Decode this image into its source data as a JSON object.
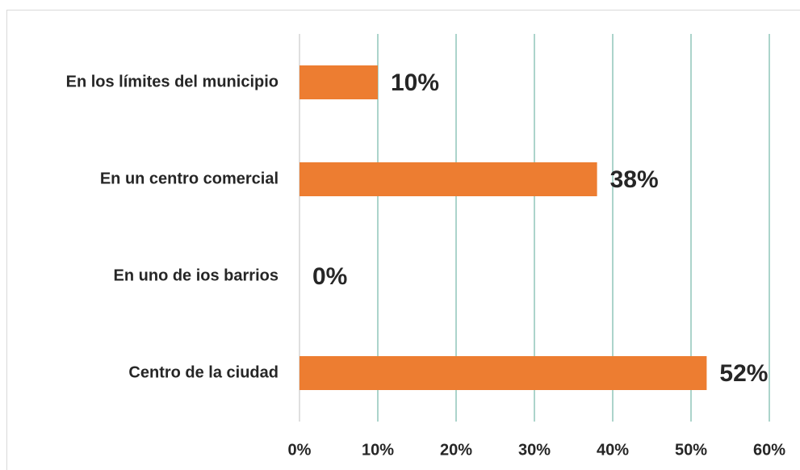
{
  "chart_data": {
    "type": "bar",
    "orientation": "horizontal",
    "categories": [
      "En los límites del municipio",
      "En un centro comercial",
      "En uno de ios barrios",
      "Centro de la ciudad"
    ],
    "values": [
      10,
      38,
      0,
      52
    ],
    "value_labels": [
      "10%",
      "38%",
      "0%",
      "52%"
    ],
    "color": "#ed7d31",
    "xlim": [
      0,
      60
    ],
    "xticks": [
      {
        "value": 0,
        "label": "0%"
      },
      {
        "value": 10,
        "label": "10%"
      },
      {
        "value": 20,
        "label": "20%"
      },
      {
        "value": 30,
        "label": "30%"
      },
      {
        "value": 40,
        "label": "40%"
      },
      {
        "value": 50,
        "label": "50%"
      },
      {
        "value": 60,
        "label": "60%"
      }
    ],
    "grid": true
  }
}
